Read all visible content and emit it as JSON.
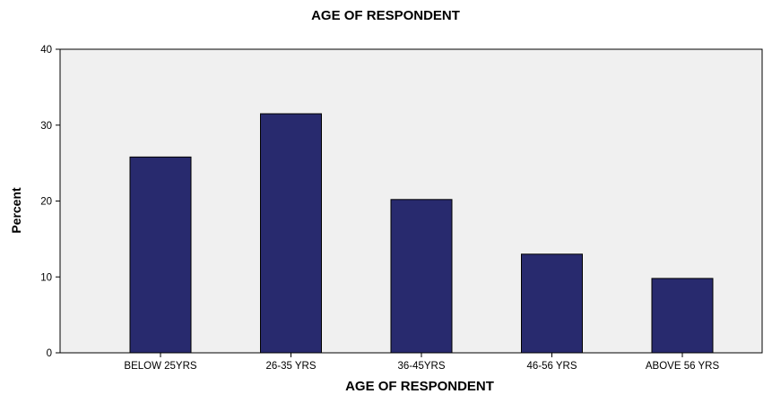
{
  "chart_data": {
    "type": "bar",
    "title": "AGE OF RESPONDENT",
    "xlabel": "AGE OF RESPONDENT",
    "ylabel": "Percent",
    "categories": [
      "BELOW 25YRS",
      "26-35 YRS",
      "36-45YRS",
      "46-56 YRS",
      "ABOVE 56 YRS"
    ],
    "values": [
      25.8,
      31.5,
      20.2,
      13.0,
      9.8
    ],
    "ylim": [
      0,
      40
    ],
    "yticks": [
      0,
      10,
      20,
      30,
      40
    ],
    "grid": false,
    "legend": "none",
    "colors": {
      "bar_fill": "#282a6e",
      "bar_stroke": "#000000",
      "plot_background": "#f0f0f0",
      "axis": "#000000"
    }
  }
}
